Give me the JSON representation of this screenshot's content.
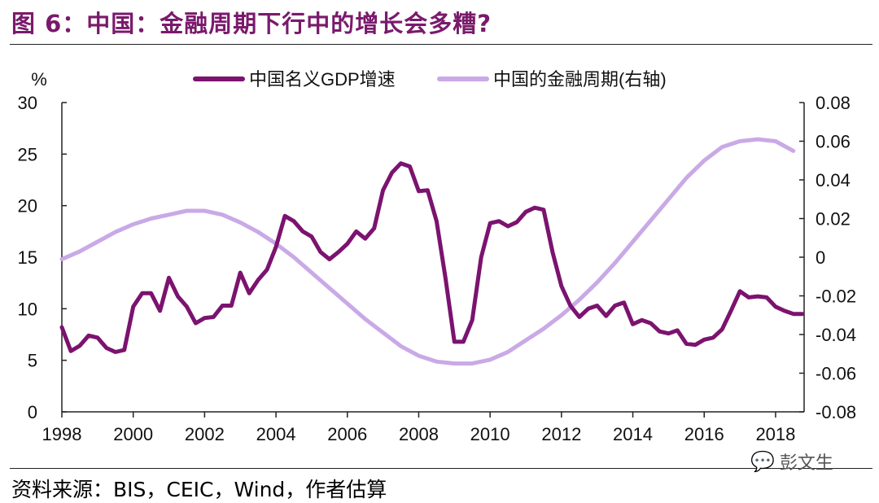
{
  "title": "图 6：中国：金融周期下行中的增长会多糟?",
  "source": "资料来源：BIS，CEIC，Wind，作者估算",
  "watermark": {
    "text": "彭文生",
    "icon": "wechat-icon"
  },
  "colors": {
    "title": "#7a1a6c",
    "gdp": "#7b136f",
    "cycle": "#c9a9e6"
  },
  "chart_data": {
    "type": "line",
    "left_axis": {
      "unit_label": "%",
      "ylim": [
        0,
        30
      ],
      "ticks": [
        "0",
        "5",
        "10",
        "15",
        "20",
        "25",
        "30"
      ]
    },
    "right_axis": {
      "ylim": [
        -0.08,
        0.08
      ],
      "ticks": [
        "-0.08",
        "-0.06",
        "-0.04",
        "-0.02",
        "0",
        "0.02",
        "0.04",
        "0.06",
        "0.08"
      ]
    },
    "x_axis": {
      "xlim": [
        1998,
        2018.8
      ],
      "ticks": [
        "1998",
        "2000",
        "2002",
        "2004",
        "2006",
        "2008",
        "2010",
        "2012",
        "2014",
        "2016",
        "2018"
      ]
    },
    "series": [
      {
        "name": "中国名义GDP增速",
        "axis": "left",
        "x": [
          1998.0,
          1998.25,
          1998.5,
          1998.75,
          1999.0,
          1999.25,
          1999.5,
          1999.75,
          2000.0,
          2000.25,
          2000.5,
          2000.75,
          2001.0,
          2001.25,
          2001.5,
          2001.75,
          2002.0,
          2002.25,
          2002.5,
          2002.75,
          2003.0,
          2003.25,
          2003.5,
          2003.75,
          2004.0,
          2004.25,
          2004.5,
          2004.75,
          2005.0,
          2005.25,
          2005.5,
          2005.75,
          2006.0,
          2006.25,
          2006.5,
          2006.75,
          2007.0,
          2007.25,
          2007.5,
          2007.75,
          2008.0,
          2008.25,
          2008.5,
          2008.75,
          2009.0,
          2009.25,
          2009.5,
          2009.75,
          2010.0,
          2010.25,
          2010.5,
          2010.75,
          2011.0,
          2011.25,
          2011.5,
          2011.75,
          2012.0,
          2012.25,
          2012.5,
          2012.75,
          2013.0,
          2013.25,
          2013.5,
          2013.75,
          2014.0,
          2014.25,
          2014.5,
          2014.75,
          2015.0,
          2015.25,
          2015.5,
          2015.75,
          2016.0,
          2016.25,
          2016.5,
          2016.75,
          2017.0,
          2017.25,
          2017.5,
          2017.75,
          2018.0,
          2018.25,
          2018.5,
          2018.75
        ],
        "values": [
          8.2,
          5.9,
          6.4,
          7.4,
          7.2,
          6.2,
          5.8,
          6.0,
          10.2,
          11.5,
          11.5,
          9.8,
          13.0,
          11.2,
          10.2,
          8.6,
          9.1,
          9.2,
          10.3,
          10.3,
          13.5,
          11.5,
          12.8,
          13.8,
          16.0,
          19.0,
          18.5,
          17.5,
          17.0,
          15.5,
          14.8,
          15.5,
          16.3,
          17.5,
          16.8,
          17.8,
          21.5,
          23.2,
          24.1,
          23.8,
          21.4,
          21.5,
          18.5,
          13.0,
          6.8,
          6.8,
          8.9,
          15.0,
          18.3,
          18.5,
          18.0,
          18.4,
          19.4,
          19.8,
          19.6,
          15.5,
          12.2,
          10.3,
          9.2,
          10.0,
          10.3,
          9.3,
          10.3,
          10.6,
          8.5,
          8.9,
          8.6,
          7.8,
          7.6,
          7.9,
          6.6,
          6.5,
          7.0,
          7.2,
          8.0,
          9.8,
          11.7,
          11.1,
          11.2,
          11.1,
          10.2,
          9.8,
          9.5,
          9.5
        ]
      },
      {
        "name": "中国的金融周期(右轴)",
        "axis": "right",
        "x": [
          1998.0,
          1998.5,
          1999.0,
          1999.5,
          2000.0,
          2000.5,
          2001.0,
          2001.5,
          2002.0,
          2002.5,
          2003.0,
          2003.5,
          2004.0,
          2004.5,
          2005.0,
          2005.5,
          2006.0,
          2006.5,
          2007.0,
          2007.5,
          2008.0,
          2008.5,
          2009.0,
          2009.5,
          2010.0,
          2010.5,
          2011.0,
          2011.5,
          2012.0,
          2012.5,
          2013.0,
          2013.5,
          2014.0,
          2014.5,
          2015.0,
          2015.5,
          2016.0,
          2016.5,
          2017.0,
          2017.5,
          2018.0,
          2018.5
        ],
        "values": [
          -0.001,
          0.003,
          0.008,
          0.013,
          0.017,
          0.02,
          0.022,
          0.024,
          0.024,
          0.022,
          0.018,
          0.013,
          0.007,
          0.0,
          -0.008,
          -0.016,
          -0.024,
          -0.032,
          -0.039,
          -0.046,
          -0.051,
          -0.054,
          -0.055,
          -0.055,
          -0.053,
          -0.049,
          -0.043,
          -0.037,
          -0.03,
          -0.022,
          -0.013,
          -0.003,
          0.008,
          0.019,
          0.03,
          0.041,
          0.05,
          0.057,
          0.06,
          0.061,
          0.06,
          0.055
        ]
      }
    ]
  }
}
